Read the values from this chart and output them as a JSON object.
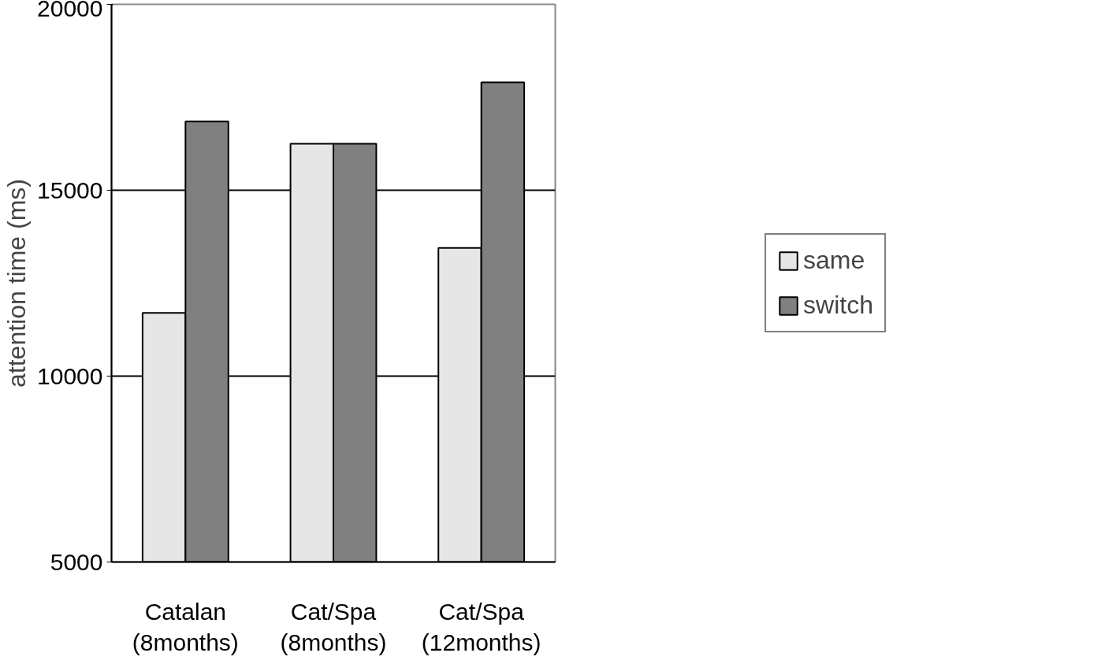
{
  "chart_data": {
    "type": "bar",
    "ylabel": "attention time (ms)",
    "categories": [
      "Catalan\n(8months)",
      "Cat/Spa\n(8months)",
      "Cat/Spa\n(12months)"
    ],
    "series": [
      {
        "name": "same",
        "color": "#e6e6e6",
        "values": [
          11700,
          16250,
          13450
        ]
      },
      {
        "name": "switch",
        "color": "#808080",
        "values": [
          16850,
          16250,
          17900
        ]
      }
    ],
    "ylim": [
      5000,
      20000
    ],
    "yticks": [
      5000,
      10000,
      15000,
      20000
    ],
    "grid": "y",
    "legend": "right"
  }
}
